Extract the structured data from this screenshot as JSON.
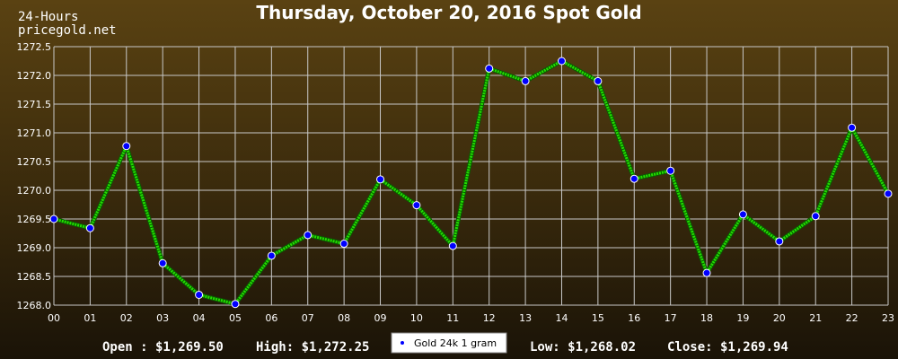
{
  "header": {
    "title": "Thursday, October 20, 2016 Spot Gold",
    "subtitle_line1": "24-Hours",
    "subtitle_line2": "pricegold.net"
  },
  "stats": {
    "open": "Open : $1,269.50",
    "high": "High: $1,272.25",
    "low": "Low: $1,268.02",
    "close": "Close: $1,269.94"
  },
  "colors": {
    "line": "#22dd00",
    "marker_fill": "#0000ff",
    "grid": "#c8c8c8"
  },
  "chart_data": {
    "type": "line",
    "title": "Thursday, October 20, 2016 Spot Gold",
    "xlabel": "",
    "ylabel": "",
    "categories": [
      "00",
      "01",
      "02",
      "03",
      "04",
      "05",
      "06",
      "07",
      "08",
      "09",
      "10",
      "11",
      "12",
      "13",
      "14",
      "15",
      "16",
      "17",
      "18",
      "19",
      "20",
      "21",
      "22",
      "23"
    ],
    "yticks": [
      "1268.0",
      "1268.5",
      "1269.0",
      "1269.5",
      "1270.0",
      "1270.5",
      "1271.0",
      "1271.5",
      "1272.0",
      "1272.5"
    ],
    "ylim": [
      1268.0,
      1272.5
    ],
    "grid": true,
    "legend_position": "bottom-center",
    "series": [
      {
        "name": "Gold 24k 1 gram",
        "values": [
          1269.5,
          1269.34,
          1270.77,
          1268.73,
          1268.18,
          1268.02,
          1268.86,
          1269.22,
          1269.07,
          1270.19,
          1269.74,
          1269.03,
          1272.12,
          1271.9,
          1272.25,
          1271.9,
          1270.2,
          1270.34,
          1268.56,
          1269.58,
          1269.11,
          1269.55,
          1271.09,
          1269.94
        ]
      }
    ]
  }
}
